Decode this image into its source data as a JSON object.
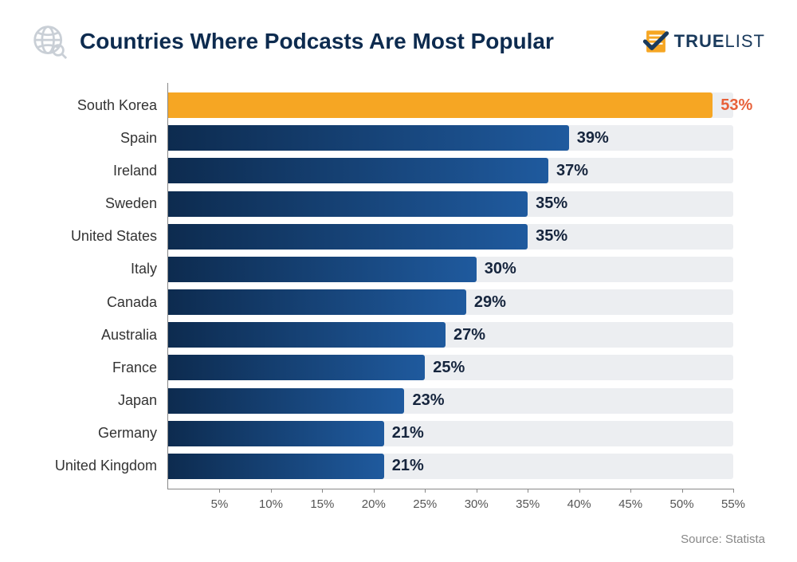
{
  "title": "Countries Where Podcasts Are Most Popular",
  "logo": {
    "brand_bold": "TRUE",
    "brand_thin": "LIST"
  },
  "chart": {
    "type": "bar",
    "orientation": "horizontal",
    "xlim": [
      0,
      55
    ],
    "xtick_step": 5,
    "xtick_suffix": "%",
    "track_color": "#eceef1",
    "axis_color": "#888888",
    "label_fontsize": 18,
    "value_fontsize": 20,
    "tick_fontsize": 15,
    "background_color": "#ffffff",
    "bars": [
      {
        "label": "South Korea",
        "value": 53,
        "fill": "#f6a623",
        "value_color": "#e7613a",
        "highlight": true
      },
      {
        "label": "Spain",
        "value": 39,
        "fill": "linear-gradient(90deg,#0d2b4f,#1f5a9e)",
        "value_color": "#16253d"
      },
      {
        "label": "Ireland",
        "value": 37,
        "fill": "linear-gradient(90deg,#0d2b4f,#1f5a9e)",
        "value_color": "#16253d"
      },
      {
        "label": "Sweden",
        "value": 35,
        "fill": "linear-gradient(90deg,#0d2b4f,#1f5a9e)",
        "value_color": "#16253d"
      },
      {
        "label": "United States",
        "value": 35,
        "fill": "linear-gradient(90deg,#0d2b4f,#1f5a9e)",
        "value_color": "#16253d"
      },
      {
        "label": "Italy",
        "value": 30,
        "fill": "linear-gradient(90deg,#0d2b4f,#1f5a9e)",
        "value_color": "#16253d"
      },
      {
        "label": "Canada",
        "value": 29,
        "fill": "linear-gradient(90deg,#0d2b4f,#1f5a9e)",
        "value_color": "#16253d"
      },
      {
        "label": "Australia",
        "value": 27,
        "fill": "linear-gradient(90deg,#0d2b4f,#1f5a9e)",
        "value_color": "#16253d"
      },
      {
        "label": "France",
        "value": 25,
        "fill": "linear-gradient(90deg,#0d2b4f,#1f5a9e)",
        "value_color": "#16253d"
      },
      {
        "label": "Japan",
        "value": 23,
        "fill": "linear-gradient(90deg,#0d2b4f,#1f5a9e)",
        "value_color": "#16253d"
      },
      {
        "label": "Germany",
        "value": 21,
        "fill": "linear-gradient(90deg,#0d2b4f,#1f5a9e)",
        "value_color": "#16253d"
      },
      {
        "label": "United Kingdom",
        "value": 21,
        "fill": "linear-gradient(90deg,#0d2b4f,#1f5a9e)",
        "value_color": "#16253d"
      }
    ]
  },
  "source": "Source: Statista",
  "colors": {
    "title": "#0d2b4f",
    "logo_text": "#1a3a5c",
    "logo_accent": "#f6a623",
    "logo_check": "#1a3a5c",
    "globe": "#c9cfd6"
  }
}
